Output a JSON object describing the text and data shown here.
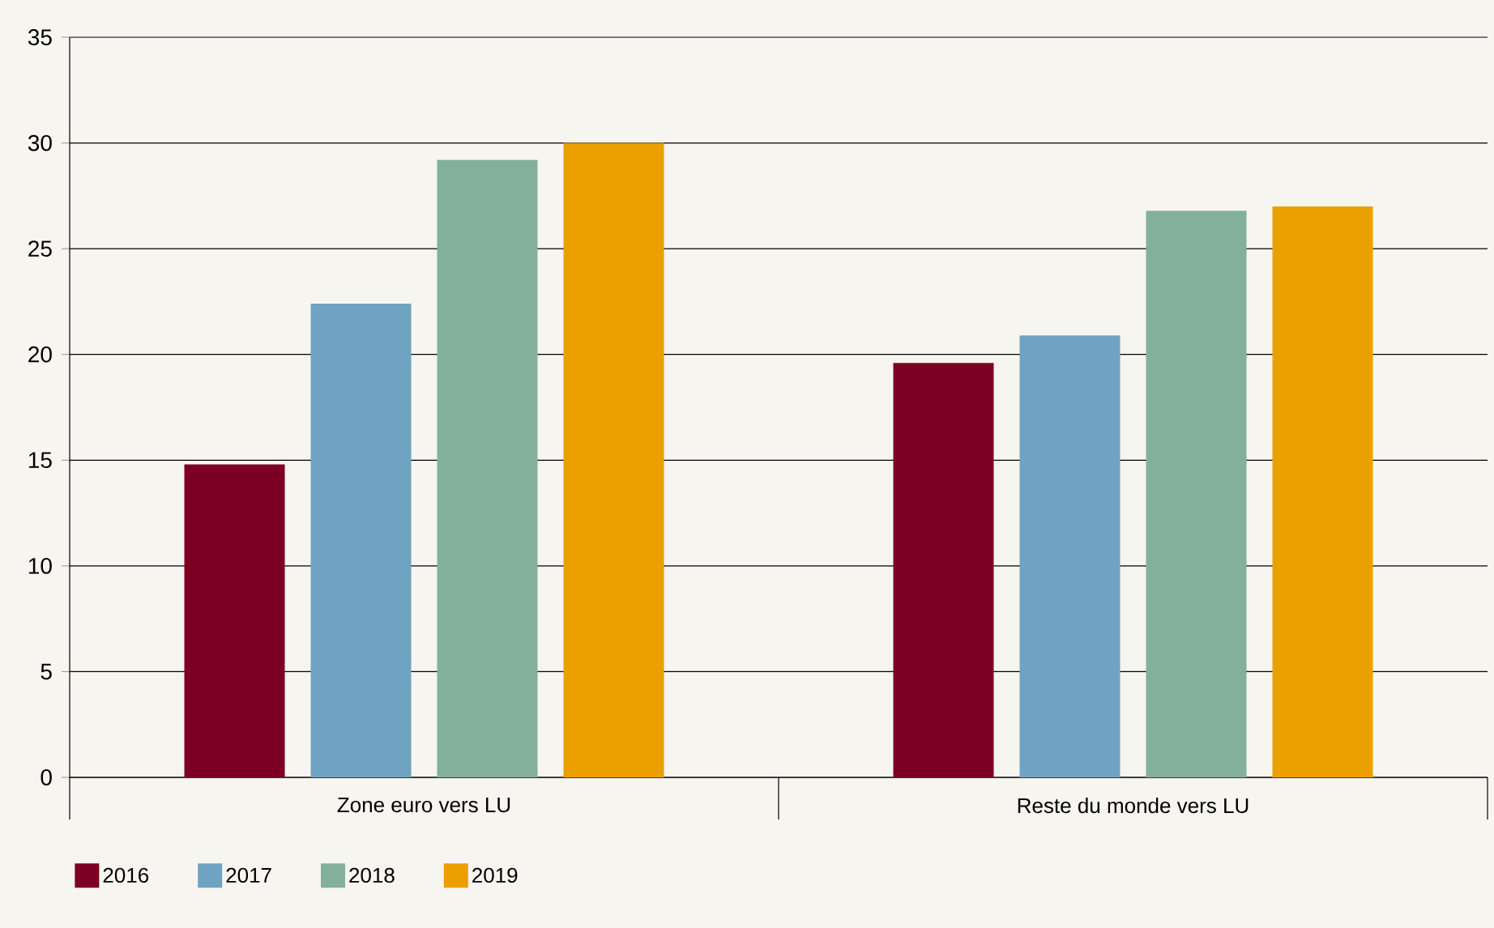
{
  "chart_data": {
    "type": "bar",
    "categories": [
      "Zone euro vers LU",
      "Reste du monde vers LU"
    ],
    "series": [
      {
        "name": "2016",
        "color": "#7d0022",
        "values": [
          14.8,
          19.6
        ]
      },
      {
        "name": "2017",
        "color": "#6fa3c1",
        "values": [
          22.4,
          20.9
        ]
      },
      {
        "name": "2018",
        "color": "#83b09b",
        "values": [
          29.2,
          26.8
        ]
      },
      {
        "name": "2019",
        "color": "#ec9f00",
        "values": [
          30.0,
          27.0
        ]
      }
    ],
    "ylim": [
      0,
      35
    ],
    "yticks": [
      0,
      5,
      10,
      15,
      20,
      25,
      30,
      35
    ],
    "grid": "y",
    "legend": "bottom left"
  }
}
